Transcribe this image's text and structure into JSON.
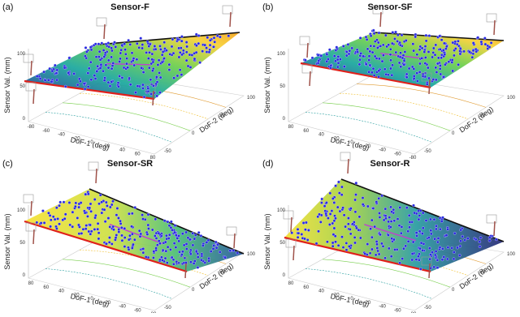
{
  "panels": [
    {
      "label": "(a)",
      "title": "Sensor-F",
      "zlabel": "Sensor Val. (mm)",
      "xlabel": "DoF-1 (deg)",
      "ylabel": "DoF-2 (deg)",
      "zticks": [
        "0",
        "50",
        "100"
      ],
      "xticks": [
        "-80",
        "-60",
        "-40",
        "-20",
        "0",
        "20",
        "40",
        "60",
        "80"
      ],
      "yticks": [
        "-50",
        "0",
        "50",
        "100"
      ]
    },
    {
      "label": "(b)",
      "title": "Sensor-SF",
      "zlabel": "Sensor Val. (mm)",
      "xlabel": "DoF-1 (deg)",
      "ylabel": "DoF-2 (deg)",
      "zticks": [
        "0",
        "50",
        "100"
      ],
      "xticks": [
        "80",
        "60",
        "40",
        "20",
        "0",
        "-20",
        "-40",
        "-60",
        "-80"
      ],
      "yticks": [
        "-50",
        "0",
        "50",
        "100"
      ]
    },
    {
      "label": "(c)",
      "title": "Sensor-SR",
      "zlabel": "Sensor Val. (mm)",
      "xlabel": "DoF-1 (deg)",
      "ylabel": "DoF-2 (deg)",
      "zticks": [
        "0",
        "50",
        "100"
      ],
      "xticks": [
        "80",
        "60",
        "40",
        "20",
        "0",
        "-20",
        "-40",
        "-60",
        "-80"
      ],
      "yticks": [
        "-50",
        "0",
        "50",
        "100"
      ]
    },
    {
      "label": "(d)",
      "title": "Sensor-R",
      "zlabel": "Sensor Val. (mm)",
      "xlabel": "DoF-1 (deg)",
      "ylabel": "DoF-2 (deg)",
      "zticks": [
        "0",
        "50",
        "100"
      ],
      "xticks": [
        "80",
        "60",
        "40",
        "20",
        "0",
        "-20",
        "-40",
        "-60",
        "-80"
      ],
      "yticks": [
        "-50",
        "0",
        "50",
        "100"
      ]
    }
  ]
}
